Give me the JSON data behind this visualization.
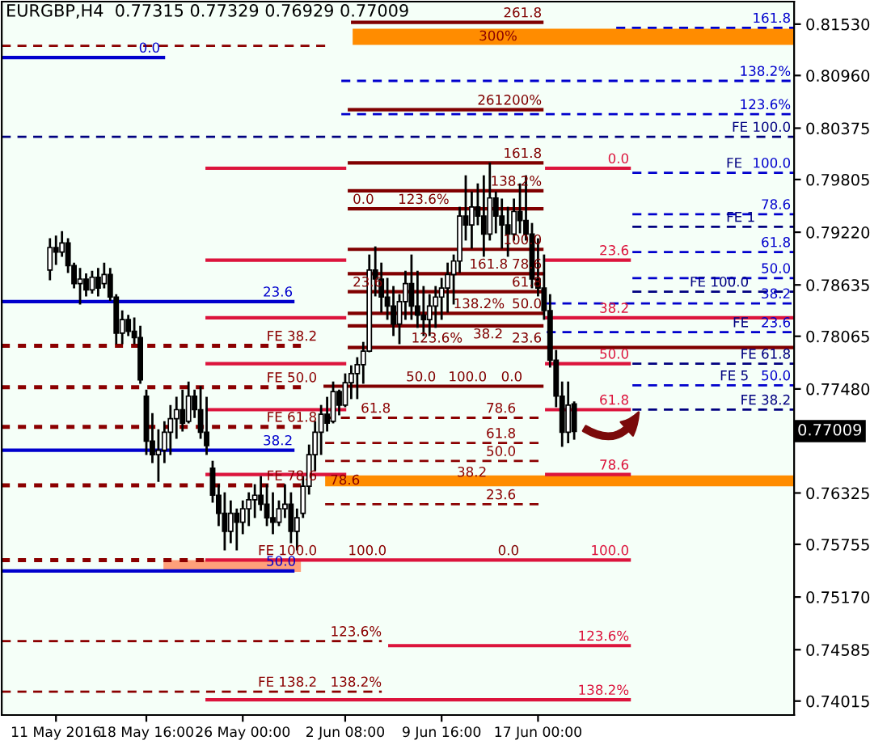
{
  "chart_data": {
    "type": "candlestick",
    "title": "EURGBP,H4  0.77315 0.77329 0.76929 0.77009",
    "categories": [
      null,
      "11 May 2016",
      null,
      null,
      null,
      null,
      null,
      null,
      null,
      null,
      null,
      null,
      null,
      null,
      null,
      null,
      "18 May 16:00",
      null,
      null,
      null,
      null,
      null,
      null,
      null,
      null,
      null,
      null,
      null,
      null,
      null,
      null,
      null,
      "26 May 00:00",
      null,
      null,
      null,
      null,
      null,
      null,
      null,
      null,
      null,
      null,
      null,
      null,
      null,
      null,
      null,
      null,
      "2 Jun 08:00",
      null,
      null,
      null,
      null,
      null,
      null,
      null,
      null,
      null,
      null,
      null,
      null,
      null,
      null,
      null,
      "9 Jun 16:00",
      null,
      null,
      null,
      null,
      null,
      null,
      null,
      null,
      null,
      null,
      null,
      null,
      null,
      null,
      null,
      "17 Jun 00:00",
      null,
      null,
      null,
      null,
      null,
      null,
      null,
      null,
      null,
      null,
      null,
      null,
      null,
      null,
      null,
      null,
      null,
      null,
      null,
      null,
      null,
      null,
      null,
      null,
      null,
      null,
      null,
      null,
      null,
      null,
      null,
      null,
      null,
      null,
      null,
      null,
      null,
      null,
      null,
      null,
      null,
      null
    ],
    "ohlc": [
      [
        0.788,
        0.7914,
        0.787,
        0.7905
      ],
      [
        0.7905,
        0.7917,
        0.7887,
        0.79
      ],
      [
        0.79,
        0.7922,
        0.7896,
        0.791
      ],
      [
        0.791,
        0.7914,
        0.7878,
        0.7885
      ],
      [
        0.7885,
        0.7887,
        0.7861,
        0.7865
      ],
      [
        0.7865,
        0.7881,
        0.7843,
        0.787
      ],
      [
        0.787,
        0.7875,
        0.7852,
        0.7858
      ],
      [
        0.7858,
        0.7878,
        0.7855,
        0.7872
      ],
      [
        0.7872,
        0.7881,
        0.7852,
        0.786
      ],
      [
        0.7865,
        0.7887,
        0.7861,
        0.7875
      ],
      [
        0.7875,
        0.7881,
        0.7847,
        0.785
      ],
      [
        0.785,
        0.7852,
        0.7799,
        0.781
      ],
      [
        0.781,
        0.7834,
        0.7799,
        0.7825
      ],
      [
        0.7825,
        0.7829,
        0.7808,
        0.7812
      ],
      [
        0.7812,
        0.7826,
        0.7799,
        0.7805
      ],
      [
        0.7805,
        0.7817,
        0.7755,
        0.7758
      ],
      [
        0.774,
        0.7746,
        0.7676,
        0.769
      ],
      [
        0.769,
        0.772,
        0.7667,
        0.7675
      ],
      [
        0.7675,
        0.7702,
        0.7646,
        0.768
      ],
      [
        0.768,
        0.7711,
        0.7667,
        0.77
      ],
      [
        0.77,
        0.7729,
        0.7676,
        0.7715
      ],
      [
        0.7715,
        0.7738,
        0.7694,
        0.7725
      ],
      [
        0.7725,
        0.7746,
        0.7702,
        0.771
      ],
      [
        0.7712,
        0.7755,
        0.7711,
        0.774
      ],
      [
        0.774,
        0.7746,
        0.7717,
        0.7725
      ],
      [
        0.7725,
        0.775,
        0.7694,
        0.77
      ],
      [
        0.77,
        0.7738,
        0.7676,
        0.7685
      ],
      [
        0.766,
        0.7667,
        0.7623,
        0.763
      ],
      [
        0.763,
        0.7641,
        0.7597,
        0.761
      ],
      [
        0.761,
        0.7632,
        0.757,
        0.759
      ],
      [
        0.759,
        0.7623,
        0.7578,
        0.761
      ],
      [
        0.761,
        0.7614,
        0.757,
        0.76
      ],
      [
        0.76,
        0.7623,
        0.7588,
        0.7615
      ],
      [
        0.7615,
        0.7632,
        0.7597,
        0.7625
      ],
      [
        0.7625,
        0.7641,
        0.7606,
        0.763
      ],
      [
        0.763,
        0.765,
        0.7614,
        0.762
      ],
      [
        0.762,
        0.7641,
        0.7597,
        0.7605
      ],
      [
        0.7605,
        0.7632,
        0.7588,
        0.76
      ],
      [
        0.76,
        0.7623,
        0.7597,
        0.7615
      ],
      [
        0.7615,
        0.7641,
        0.7606,
        0.762
      ],
      [
        0.762,
        0.7632,
        0.7578,
        0.759
      ],
      [
        0.759,
        0.7614,
        0.757,
        0.7605
      ],
      [
        0.761,
        0.765,
        0.7606,
        0.764
      ],
      [
        0.764,
        0.7685,
        0.7632,
        0.7675
      ],
      [
        0.7675,
        0.7711,
        0.7658,
        0.77
      ],
      [
        0.77,
        0.7729,
        0.7676,
        0.772
      ],
      [
        0.772,
        0.7738,
        0.7702,
        0.771
      ],
      [
        0.7712,
        0.7755,
        0.7711,
        0.7745
      ],
      [
        0.7745,
        0.7746,
        0.772,
        0.773
      ],
      [
        0.773,
        0.7764,
        0.7729,
        0.7755
      ],
      [
        0.7755,
        0.7773,
        0.7738,
        0.7765
      ],
      [
        0.7765,
        0.7782,
        0.7738,
        0.7775
      ],
      [
        0.7775,
        0.7799,
        0.7755,
        0.779
      ],
      [
        0.779,
        0.7896,
        0.779,
        0.788
      ],
      [
        0.788,
        0.7905,
        0.7852,
        0.787
      ],
      [
        0.787,
        0.7887,
        0.7834,
        0.785
      ],
      [
        0.785,
        0.787,
        0.7826,
        0.784
      ],
      [
        0.784,
        0.7861,
        0.7808,
        0.782
      ],
      [
        0.782,
        0.7852,
        0.7799,
        0.7845
      ],
      [
        0.7845,
        0.7878,
        0.7826,
        0.7865
      ],
      [
        0.7865,
        0.7896,
        0.7826,
        0.784
      ],
      [
        0.784,
        0.7878,
        0.7817,
        0.783
      ],
      [
        0.783,
        0.7861,
        0.7808,
        0.7825
      ],
      [
        0.7825,
        0.7852,
        0.7808,
        0.784
      ],
      [
        0.784,
        0.7861,
        0.7817,
        0.785
      ],
      [
        0.785,
        0.787,
        0.7826,
        0.786
      ],
      [
        0.786,
        0.7887,
        0.7834,
        0.7875
      ],
      [
        0.7875,
        0.7896,
        0.7843,
        0.789
      ],
      [
        0.789,
        0.7949,
        0.7878,
        0.794
      ],
      [
        0.794,
        0.7984,
        0.7914,
        0.793
      ],
      [
        0.793,
        0.7966,
        0.7905,
        0.795
      ],
      [
        0.795,
        0.7975,
        0.7931,
        0.794
      ],
      [
        0.794,
        0.7984,
        0.7896,
        0.792
      ],
      [
        0.792,
        0.7998,
        0.7914,
        0.796
      ],
      [
        0.796,
        0.7966,
        0.7922,
        0.794
      ],
      [
        0.794,
        0.7958,
        0.7905,
        0.793
      ],
      [
        0.793,
        0.7949,
        0.7896,
        0.792
      ],
      [
        0.792,
        0.7958,
        0.7914,
        0.7945
      ],
      [
        0.7945,
        0.7975,
        0.7922,
        0.7935
      ],
      [
        0.7935,
        0.7984,
        0.7914,
        0.792
      ],
      [
        0.792,
        0.7931,
        0.7861,
        0.787
      ],
      [
        0.787,
        0.7914,
        0.7852,
        0.786
      ],
      [
        0.786,
        0.7896,
        0.7826,
        0.7835
      ],
      [
        0.7835,
        0.7852,
        0.7773,
        0.778
      ],
      [
        0.778,
        0.779,
        0.7729,
        0.774
      ],
      [
        0.774,
        0.7755,
        0.7685,
        0.77
      ],
      [
        0.77,
        0.7755,
        0.7689,
        0.773
      ],
      [
        0.77315,
        0.77329,
        0.76929,
        0.77009
      ],
      null,
      null,
      null,
      null,
      null,
      null,
      null,
      null,
      null,
      null,
      null,
      null,
      null,
      null,
      null,
      null,
      null,
      null,
      null,
      null,
      null,
      null,
      null,
      null,
      null,
      null,
      null,
      null,
      null,
      null,
      null,
      null,
      null,
      null,
      null,
      null
    ],
    "color": "#000000",
    "ylim": [
      0.7386,
      0.8178
    ],
    "yticks": [
      {
        "value": 0.8153,
        "label": "0.81530"
      },
      {
        "value": 0.8096,
        "label": "0.80960"
      },
      {
        "value": 0.80375,
        "label": "0.80375"
      },
      {
        "value": 0.79805,
        "label": "0.79805"
      },
      {
        "value": 0.7922,
        "label": "0.79220"
      },
      {
        "value": 0.78635,
        "label": "0.78635"
      },
      {
        "value": 0.78065,
        "label": "0.78065"
      },
      {
        "value": 0.7748,
        "label": "0.77480"
      },
      {
        "value": 0.76325,
        "label": "0.76325"
      },
      {
        "value": 0.75755,
        "label": "0.75755"
      },
      {
        "value": 0.7517,
        "label": "0.75170"
      },
      {
        "value": 0.74585,
        "label": "0.74585"
      },
      {
        "value": 0.74015,
        "label": "0.74015"
      }
    ],
    "grid": false,
    "annotations": [
      "0.77009",
      {
        "text": "161.8",
        "y": 0.8149
      },
      {
        "text": "138.2%",
        "y": 0.809
      },
      {
        "text": "123.6%",
        "y": 0.8053
      },
      {
        "text": "FE 100.0",
        "y": 0.8028
      },
      {
        "text": "100.0",
        "y": 0.7988
      },
      {
        "text": "FE",
        "y": 0.7988
      },
      {
        "text": "78.6",
        "y": 0.7942
      },
      {
        "text": "FE 1",
        "y": 0.7928
      },
      {
        "text": "61.8",
        "y": 0.79
      },
      {
        "text": "50.0",
        "y": 0.7871
      },
      {
        "text": "FE 100.0",
        "y": 0.7856
      },
      {
        "text": "38.2",
        "y": 0.7843
      },
      {
        "text": "23.6",
        "y": 0.7811
      },
      {
        "text": "FE",
        "y": 0.7811
      },
      {
        "text": "FE 61.8",
        "y": 0.7776
      },
      {
        "text": "50.0",
        "y": 0.7752
      },
      {
        "text": "FE 5",
        "y": 0.7752
      },
      {
        "text": "FE 38.2",
        "y": 0.7725
      },
      {
        "text": "0.0",
        "y": 0.8116
      },
      {
        "text": "23.6",
        "y": 0.7845
      },
      {
        "text": "38.2",
        "y": 0.768
      },
      {
        "text": "50.0",
        "y": 0.7546
      },
      {
        "text": "FE 38.2",
        "y": 0.7796
      },
      {
        "text": "FE 50.0",
        "y": 0.775
      },
      {
        "text": "FE 61.8",
        "y": 0.7706
      },
      {
        "text": "FE 78.6",
        "y": 0.7641
      },
      {
        "text": "FE 100.0",
        "y": 0.7558
      },
      {
        "text": "FE 138.2",
        "y": 0.7412
      },
      {
        "text": "138.2%",
        "y": 0.7412
      },
      {
        "text": "261.8",
        "y": 0.8155
      },
      {
        "text": "200%",
        "y": 0.8058
      },
      {
        "text": "261",
        "y": 0.8058
      },
      {
        "text": "161.8",
        "y": 0.7999
      },
      {
        "text": "138.2%",
        "y": 0.7968
      },
      {
        "text": "0.0",
        "y": 0.7948
      },
      {
        "text": "123.6%",
        "y": 0.7948
      },
      {
        "text": "100.0",
        "y": 0.7903
      },
      {
        "text": "161.8",
        "y": 0.7876
      },
      {
        "text": "78.6",
        "y": 0.7876
      },
      {
        "text": "23.6",
        "y": 0.7856
      },
      {
        "text": "61.8",
        "y": 0.7856
      },
      {
        "text": "138.2%",
        "y": 0.7832
      },
      {
        "text": "50.0",
        "y": 0.7832
      },
      {
        "text": "38.2",
        "y": 0.7818
      },
      {
        "text": "123.6%",
        "y": 0.7794
      },
      {
        "text": "23.6",
        "y": 0.7794
      },
      {
        "text": "50.0",
        "y": 0.7751
      },
      {
        "text": "100.0",
        "y": 0.7751
      },
      {
        "text": "0.0",
        "y": 0.7751
      },
      {
        "text": "78.6",
        "y": 0.7716
      },
      {
        "text": "61.8",
        "y": 0.7716
      },
      {
        "text": "61.8",
        "y": 0.7688
      },
      {
        "text": "50.0",
        "y": 0.7668
      },
      {
        "text": "38.2",
        "y": 0.7645
      },
      {
        "text": "23.6",
        "y": 0.762
      },
      {
        "text": "0.0",
        "y": 0.7993
      },
      {
        "text": "23.6",
        "y": 0.7891
      },
      {
        "text": "38.2",
        "y": 0.7827
      },
      {
        "text": "50.0",
        "y": 0.7776
      },
      {
        "text": "61.8",
        "y": 0.7725
      },
      {
        "text": "78.6",
        "y": 0.7653
      },
      {
        "text": "100.0",
        "y": 0.7558
      },
      {
        "text": "123.6%",
        "y": 0.7463
      },
      {
        "text": "138.2%",
        "y": 0.7403
      },
      {
        "text": "123.6%",
        "y": 0.7468
      },
      {
        "text": "100.0",
        "y": 0.7558
      },
      {
        "text": "0.0",
        "y": 0.7558
      }
    ],
    "bands": [
      {
        "axis": "y",
        "from": 0.813,
        "to": 0.8148,
        "label": "300%",
        "color": "#ff8c00"
      },
      {
        "axis": "y",
        "from": 0.764,
        "to": 0.7652,
        "label": "78.6",
        "color": "#ff8c00"
      },
      {
        "axis": "y",
        "from": 0.7545,
        "to": 0.7558,
        "color": "#ffa07a"
      }
    ],
    "ref_lines": [
      {
        "axis": "y",
        "value": 0.8149,
        "color": "#0000cd",
        "line_style": "dashed"
      },
      {
        "axis": "y",
        "value": 0.809,
        "color": "#0000cd",
        "line_style": "dashed"
      },
      {
        "axis": "y",
        "value": 0.8053,
        "color": "#0000cd",
        "line_style": "dashed"
      },
      {
        "axis": "y",
        "value": 0.8028,
        "color": "#000080",
        "line_style": "dashed"
      },
      {
        "axis": "y",
        "value": 0.7988,
        "color": "#0000cd",
        "line_style": "dashed"
      },
      {
        "axis": "y",
        "value": 0.7942,
        "color": "#0000cd",
        "line_style": "dashed"
      },
      {
        "axis": "y",
        "value": 0.7928,
        "color": "#000080",
        "line_style": "dashed"
      },
      {
        "axis": "y",
        "value": 0.79,
        "color": "#0000cd",
        "line_style": "dashed"
      },
      {
        "axis": "y",
        "value": 0.7871,
        "color": "#0000cd",
        "line_style": "dashed"
      },
      {
        "axis": "y",
        "value": 0.7856,
        "color": "#000080",
        "line_style": "dashed"
      },
      {
        "axis": "y",
        "value": 0.7843,
        "color": "#0000cd",
        "line_style": "dashed"
      },
      {
        "axis": "y",
        "value": 0.7811,
        "color": "#0000cd",
        "line_style": "dashed"
      },
      {
        "axis": "y",
        "value": 0.7776,
        "color": "#000080",
        "line_style": "dashed"
      },
      {
        "axis": "y",
        "value": 0.7752,
        "color": "#0000cd",
        "line_style": "dashed"
      },
      {
        "axis": "y",
        "value": 0.7725,
        "color": "#000080",
        "line_style": "dashed"
      },
      {
        "axis": "y",
        "value": 0.8116,
        "color": "#0000cd",
        "line_style": "solid"
      },
      {
        "axis": "y",
        "value": 0.7845,
        "color": "#0000cd",
        "line_style": "solid"
      },
      {
        "axis": "y",
        "value": 0.768,
        "color": "#0000cd",
        "line_style": "solid"
      },
      {
        "axis": "y",
        "value": 0.7546,
        "color": "#0000cd",
        "line_style": "solid"
      },
      {
        "axis": "y",
        "value": 0.7796,
        "color": "#8b0000",
        "line_style": "dotted"
      },
      {
        "axis": "y",
        "value": 0.775,
        "color": "#8b0000",
        "line_style": "dotted"
      },
      {
        "axis": "y",
        "value": 0.7706,
        "color": "#8b0000",
        "line_style": "dotted"
      },
      {
        "axis": "y",
        "value": 0.7641,
        "color": "#8b0000",
        "line_style": "dotted"
      },
      {
        "axis": "y",
        "value": 0.7558,
        "color": "#8b0000",
        "line_style": "dotted"
      },
      {
        "axis": "y",
        "value": 0.7412,
        "color": "#8b0000",
        "line_style": "dashed"
      },
      {
        "axis": "y",
        "value": 0.8155,
        "color": "#800000",
        "line_style": "solid"
      },
      {
        "axis": "y",
        "value": 0.8058,
        "color": "#800000",
        "line_style": "solid"
      },
      {
        "axis": "y",
        "value": 0.8129,
        "color": "#8b0000",
        "line_style": "dashed"
      },
      {
        "axis": "y",
        "value": 0.7999,
        "color": "#800000",
        "line_style": "solid"
      },
      {
        "axis": "y",
        "value": 0.7968,
        "color": "#800000",
        "line_style": "solid"
      },
      {
        "axis": "y",
        "value": 0.7948,
        "color": "#800000",
        "line_style": "solid"
      },
      {
        "axis": "y",
        "value": 0.7903,
        "color": "#800000",
        "line_style": "solid"
      },
      {
        "axis": "y",
        "value": 0.7876,
        "color": "#800000",
        "line_style": "solid"
      },
      {
        "axis": "y",
        "value": 0.7856,
        "color": "#800000",
        "line_style": "solid"
      },
      {
        "axis": "y",
        "value": 0.7832,
        "color": "#800000",
        "line_style": "solid"
      },
      {
        "axis": "y",
        "value": 0.7818,
        "color": "#800000",
        "line_style": "solid"
      },
      {
        "axis": "y",
        "value": 0.7794,
        "color": "#800000",
        "line_style": "solid"
      },
      {
        "axis": "y",
        "value": 0.7751,
        "color": "#800000",
        "line_style": "solid"
      },
      {
        "axis": "y",
        "value": 0.7716,
        "color": "#8b0000",
        "line_style": "dashed"
      },
      {
        "axis": "y",
        "value": 0.7688,
        "color": "#8b0000",
        "line_style": "dashed"
      },
      {
        "axis": "y",
        "value": 0.7668,
        "color": "#8b0000",
        "line_style": "dashed"
      },
      {
        "axis": "y",
        "value": 0.762,
        "color": "#8b0000",
        "line_style": "dashed"
      },
      {
        "axis": "y",
        "value": 0.7993,
        "color": "#dc143c",
        "line_style": "solid"
      },
      {
        "axis": "y",
        "value": 0.7891,
        "color": "#dc143c",
        "line_style": "solid"
      },
      {
        "axis": "y",
        "value": 0.7827,
        "color": "#dc143c",
        "line_style": "solid"
      },
      {
        "axis": "y",
        "value": 0.7776,
        "color": "#dc143c",
        "line_style": "solid"
      },
      {
        "axis": "y",
        "value": 0.7725,
        "color": "#dc143c",
        "line_style": "solid"
      },
      {
        "axis": "y",
        "value": 0.7653,
        "color": "#dc143c",
        "line_style": "solid"
      },
      {
        "axis": "y",
        "value": 0.7558,
        "color": "#dc143c",
        "line_style": "solid"
      },
      {
        "axis": "y",
        "value": 0.7463,
        "color": "#dc143c",
        "line_style": "solid"
      },
      {
        "axis": "y",
        "value": 0.7403,
        "color": "#dc143c",
        "line_style": "solid"
      },
      {
        "axis": "y",
        "value": 0.7468,
        "color": "#8b0000",
        "line_style": "dashed"
      }
    ]
  }
}
